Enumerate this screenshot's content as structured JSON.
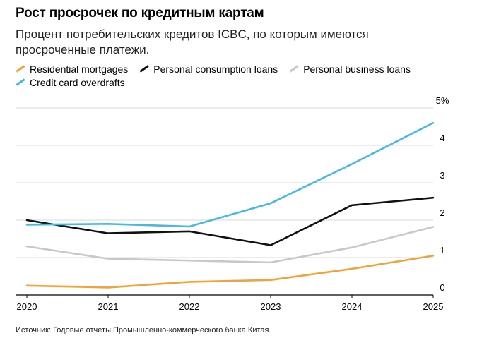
{
  "header": {
    "title": "Рост просрочек по кредитным картам",
    "subtitle": "Процент потребительских кредитов ICBC, по которым имеются просроченные платежи."
  },
  "source": "Источник: Годовые отчеты Промышленно-коммерческого банка Китая.",
  "chart_data": {
    "type": "line",
    "title": "Рост просрочек по кредитным картам",
    "x": [
      2020,
      2021,
      2022,
      2023,
      2024,
      2025
    ],
    "ylim": [
      0,
      5
    ],
    "yticks": [
      0,
      1,
      2,
      3,
      4,
      5
    ],
    "ytick_labels": [
      "0",
      "1",
      "2",
      "3",
      "4",
      "5%"
    ],
    "grid": true,
    "legend_position": "top-left",
    "series": [
      {
        "name": "Residential mortgages",
        "color": "#f0a33a",
        "values": [
          0.25,
          0.2,
          0.35,
          0.4,
          0.7,
          1.05
        ]
      },
      {
        "name": "Personal consumption loans",
        "color": "#111111",
        "values": [
          2.0,
          1.65,
          1.7,
          1.33,
          2.4,
          2.6
        ]
      },
      {
        "name": "Personal business loans",
        "color": "#c8c8c8",
        "values": [
          1.3,
          0.97,
          0.92,
          0.87,
          1.27,
          1.82
        ]
      },
      {
        "name": "Credit card overdrafts",
        "color": "#4ab8e0",
        "values": [
          1.88,
          1.9,
          1.83,
          2.45,
          3.5,
          4.6
        ]
      }
    ]
  }
}
